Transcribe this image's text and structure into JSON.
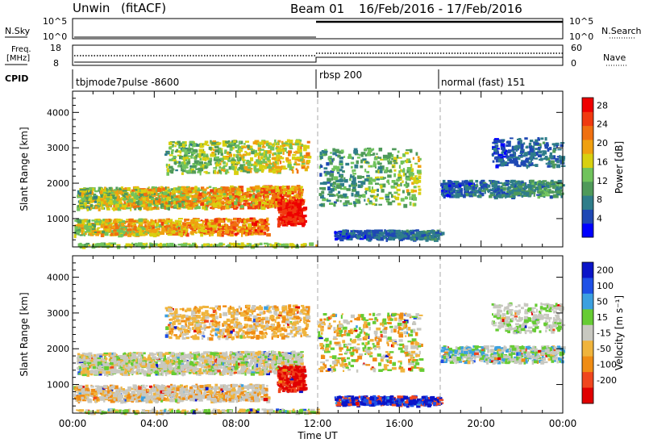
{
  "header": {
    "radar": "Unwin",
    "mode": "(fitACF)",
    "beam": "Beam 01",
    "date_range": "16/Feb/2016 - 17/Feb/2016"
  },
  "panels": {
    "nsky": {
      "label": "N.Sky",
      "right_label": "N.Search",
      "left_ticks": [
        "10^5",
        "10^0"
      ],
      "right_ticks": [
        "10^5",
        "10^0"
      ]
    },
    "freq": {
      "label_line1": "Freq.",
      "label_line2": "[MHz]",
      "right_label": "Nave",
      "left_ticks": [
        "18",
        "8"
      ],
      "right_ticks": [
        "60",
        "0"
      ]
    },
    "cpid": {
      "label": "CPID",
      "segments": [
        {
          "text": "tbjmode7pulse -8600",
          "start_hour": 0,
          "end_hour": 12
        },
        {
          "text": "rbsp 200",
          "start_hour": 12,
          "end_hour": 18
        },
        {
          "text": "normal (fast) 151",
          "start_hour": 18,
          "end_hour": 24
        }
      ]
    }
  },
  "chart_data": [
    {
      "type": "heatmap",
      "title": "Power",
      "ylabel": "Slant Range [km]",
      "xlabel": "",
      "xlim": [
        0,
        24
      ],
      "ylim": [
        200,
        4600
      ],
      "yticks": [
        1000,
        2000,
        3000,
        4000
      ],
      "colorbar": {
        "label": "Power [dB]",
        "ticks": [
          "4",
          "8",
          "12",
          "16",
          "20",
          "24",
          "28"
        ],
        "colors": [
          "#0000ff",
          "#1f48b4",
          "#2f7d8a",
          "#4f9a5a",
          "#70c35c",
          "#d8d010",
          "#f0a010",
          "#f07010",
          "#f03a10",
          "#ee0000"
        ]
      },
      "vertical_markers_hours": [
        12,
        18
      ]
    },
    {
      "type": "heatmap",
      "title": "Velocity",
      "ylabel": "Slant Range [km]",
      "xlabel": "Time UT",
      "xlim": [
        0,
        24
      ],
      "ylim": [
        200,
        4600
      ],
      "yticks": [
        1000,
        2000,
        3000,
        4000
      ],
      "xtick_labels": [
        "00:00",
        "04:00",
        "08:00",
        "12:00",
        "16:00",
        "20:00",
        "00:00"
      ],
      "colorbar": {
        "label": "Velocity [m s⁻¹]",
        "ticks": [
          "200",
          "100",
          "50",
          "15",
          "-15",
          "-50",
          "-100",
          "-200"
        ],
        "colors": [
          "#0a14c8",
          "#1e50e6",
          "#3ca0e0",
          "#66cc33",
          "#c8c8c0",
          "#f0b43c",
          "#f08c14",
          "#f0461e",
          "#e00000"
        ]
      },
      "vertical_markers_hours": [
        12,
        18
      ]
    }
  ]
}
